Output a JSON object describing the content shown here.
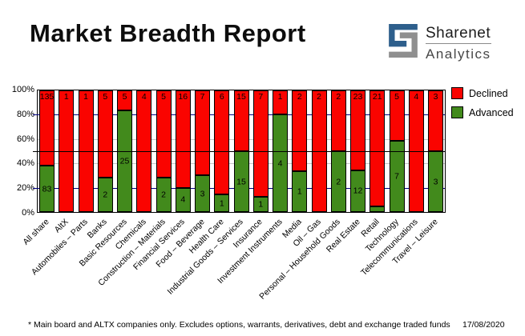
{
  "title": "Market Breadth Report",
  "logo": {
    "brand": "Sharenet",
    "sub": "Analytics",
    "blue": "#2e5f8c",
    "gray": "#8f8f8f"
  },
  "legend": [
    {
      "label": "Declined",
      "color": "#fa0400"
    },
    {
      "label": "Advanced",
      "color": "#428a1c"
    }
  ],
  "footer": {
    "note": "* Main board and ALTX companies only. Excludes options, warrants, derivatives, debt and exchange traded funds",
    "date": "17/08/2020"
  },
  "chart_data": {
    "type": "bar",
    "subtype": "100-percent-stacked",
    "title": "Market Breadth Report",
    "categories": [
      "All share",
      "AltX",
      "Automobiles – Parts",
      "Banks",
      "Basic Resources",
      "Chemicals",
      "Construction – Materials",
      "Financial Services",
      "Food – Beverage",
      "Health Care",
      "Industrial Goods – Services",
      "Insurance",
      "Investment Instruments",
      "Media",
      "Oil – Gas",
      "Personal – Household Goods",
      "Real Estate",
      "Retail",
      "Technology",
      "Telecommunications",
      "Travel – Leisure"
    ],
    "series": [
      {
        "name": "Declined",
        "color": "#fa0400",
        "values": [
          135,
          1,
          1,
          5,
          5,
          4,
          5,
          16,
          7,
          6,
          15,
          7,
          1,
          2,
          2,
          2,
          23,
          21,
          5,
          4,
          3
        ]
      },
      {
        "name": "Advanced",
        "color": "#428a1c",
        "values": [
          83,
          0,
          0,
          2,
          25,
          0,
          2,
          4,
          3,
          1,
          15,
          1,
          4,
          1,
          0,
          2,
          12,
          1,
          7,
          0,
          3
        ]
      }
    ],
    "y_ticks": [
      "100%",
      "80%",
      "60%",
      "40%",
      "20%",
      "0%"
    ],
    "ylim": [
      0,
      100
    ],
    "label_min_pct": 8,
    "legend_position": "top-right",
    "gridlines": [
      {
        "pct": 80,
        "color": "#000080",
        "front": false,
        "tick": true
      },
      {
        "pct": 60,
        "color": "#c6c6c6",
        "front": false,
        "tick": false
      },
      {
        "pct": 50,
        "color": "#000000",
        "front": true,
        "tick": true
      },
      {
        "pct": 40,
        "color": "#c6c6c6",
        "front": false,
        "tick": false
      },
      {
        "pct": 20,
        "color": "#000080",
        "front": false,
        "tick": true
      }
    ]
  }
}
